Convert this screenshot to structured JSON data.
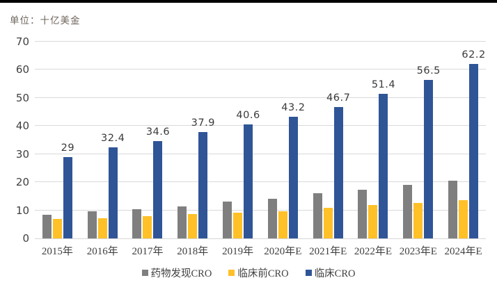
{
  "unit_label": "单位：十亿美金",
  "colors": {
    "drug_discovery_cro": "#7F7F7F",
    "preclinical_cro": "#FFC028",
    "clinical_cro": "#2F5597",
    "gridline": "#D9D9D9",
    "axis_text": "#3F3F3F",
    "unit_text": "#6F655C",
    "top_border": "#000000"
  },
  "chart_data": {
    "type": "bar",
    "title": "",
    "unit": "单位：十亿美金",
    "categories": [
      "2015年",
      "2016年",
      "2017年",
      "2018年",
      "2019年",
      "2020年E",
      "2021年E",
      "2022年E",
      "2023年E",
      "2024年E"
    ],
    "series": [
      {
        "key": "drug-discovery-cro",
        "name": "药物发现CRO",
        "color": "#7F7F7F",
        "values": [
          8.5,
          9.6,
          10.4,
          11.5,
          13.1,
          14.1,
          16.1,
          17.3,
          19.0,
          20.5
        ],
        "labels_shown": false
      },
      {
        "key": "preclinical-cro",
        "name": "临床前CRO",
        "color": "#FFC028",
        "values": [
          6.9,
          7.2,
          7.8,
          8.6,
          9.1,
          9.7,
          10.8,
          11.8,
          12.6,
          13.6
        ],
        "labels_shown": false
      },
      {
        "key": "clinical-cro",
        "name": "临床CRO",
        "color": "#2F5597",
        "values": [
          29,
          32.4,
          34.6,
          37.9,
          40.6,
          43.2,
          46.7,
          51.4,
          56.5,
          62.2
        ],
        "labels_shown": true,
        "data_labels": [
          "29",
          "32.4",
          "34.6",
          "37.9",
          "40.6",
          "43.2",
          "46.7",
          "51.4",
          "56.5",
          "62.2"
        ]
      }
    ],
    "ylim": [
      0,
      70
    ],
    "yticks": [
      0,
      10,
      20,
      30,
      40,
      50,
      60,
      70
    ],
    "grid": true,
    "legend_position": "bottom"
  }
}
